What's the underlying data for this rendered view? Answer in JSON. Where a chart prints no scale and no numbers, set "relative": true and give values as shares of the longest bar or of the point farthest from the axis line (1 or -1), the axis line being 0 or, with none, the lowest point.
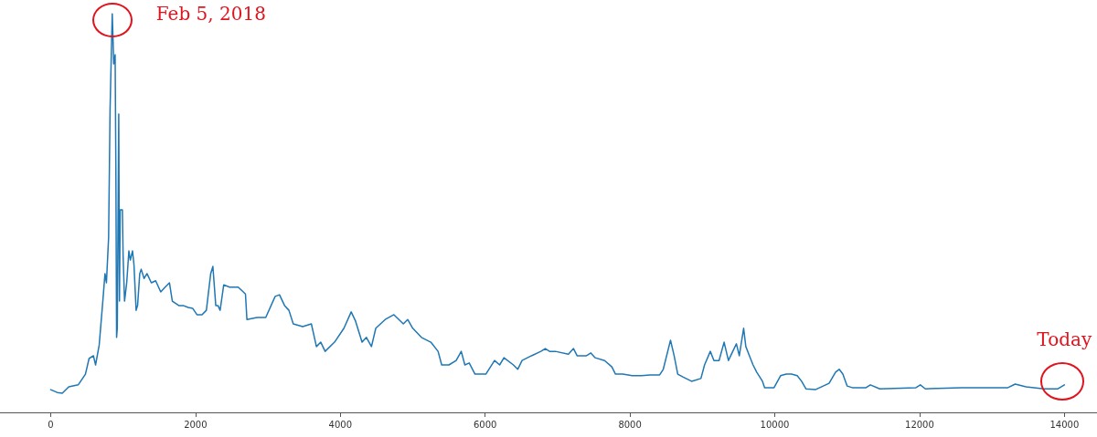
{
  "chart_data": {
    "type": "line",
    "relative": true,
    "xlim": [
      -700,
      14450
    ],
    "xticks": [
      0,
      2000,
      4000,
      6000,
      8000,
      10000,
      12000,
      14000
    ],
    "grid": false,
    "marker": "none",
    "line_style": "solid",
    "annotations": [
      {
        "text": "Feb 5, 2018",
        "x": 850,
        "y": 1
      },
      {
        "text": "Today",
        "x": 14000,
        "y": 0.069
      }
    ],
    "series": [
      {
        "color": "#1f77b4",
        "x": [
          0,
          90,
          160,
          250,
          380,
          480,
          530,
          590,
          620,
          670,
          720,
          750,
          770,
          800,
          820,
          850,
          860,
          870,
          890,
          900,
          910,
          920,
          940,
          950,
          960,
          990,
          1000,
          1020,
          1050,
          1080,
          1100,
          1130,
          1150,
          1180,
          1200,
          1230,
          1250,
          1290,
          1330,
          1390,
          1450,
          1520,
          1580,
          1640,
          1680,
          1770,
          1830,
          1900,
          1960,
          2020,
          2090,
          2150,
          2210,
          2240,
          2280,
          2310,
          2340,
          2390,
          2470,
          2590,
          2690,
          2710,
          2850,
          2970,
          3100,
          3160,
          3230,
          3290,
          3350,
          3480,
          3600,
          3670,
          3730,
          3790,
          3920,
          4050,
          4150,
          4210,
          4300,
          4360,
          4430,
          4490,
          4620,
          4740,
          4870,
          4930,
          5000,
          5120,
          5250,
          5350,
          5400,
          5500,
          5600,
          5670,
          5720,
          5780,
          5860,
          5940,
          6010,
          6130,
          6200,
          6260,
          6390,
          6450,
          6510,
          6640,
          6770,
          6830,
          6890,
          6970,
          7150,
          7220,
          7270,
          7400,
          7460,
          7520,
          7650,
          7750,
          7800,
          7900,
          8030,
          8160,
          8280,
          8410,
          8460,
          8560,
          8610,
          8660,
          8730,
          8850,
          8980,
          9030,
          9110,
          9160,
          9230,
          9300,
          9360,
          9420,
          9470,
          9510,
          9570,
          9600,
          9650,
          9700,
          9750,
          9830,
          9860,
          9990,
          10080,
          10160,
          10230,
          10310,
          10370,
          10430,
          10560,
          10750,
          10840,
          10890,
          10940,
          11000,
          11070,
          11260,
          11320,
          11450,
          11950,
          12010,
          12080,
          12580,
          13220,
          13320,
          13470,
          13720,
          13910,
          14000
        ],
        "values": [
          0.057,
          0.05,
          0.048,
          0.064,
          0.069,
          0.096,
          0.135,
          0.142,
          0.119,
          0.169,
          0.279,
          0.348,
          0.325,
          0.439,
          0.76,
          1,
          0.943,
          0.874,
          0.897,
          0.622,
          0.188,
          0.211,
          0.748,
          0.279,
          0.508,
          0.508,
          0.394,
          0.279,
          0.325,
          0.405,
          0.382,
          0.405,
          0.371,
          0.256,
          0.268,
          0.348,
          0.359,
          0.336,
          0.348,
          0.325,
          0.33,
          0.302,
          0.314,
          0.325,
          0.279,
          0.268,
          0.268,
          0.263,
          0.261,
          0.245,
          0.245,
          0.256,
          0.348,
          0.366,
          0.268,
          0.268,
          0.256,
          0.32,
          0.314,
          0.314,
          0.297,
          0.233,
          0.238,
          0.238,
          0.291,
          0.295,
          0.268,
          0.256,
          0.222,
          0.215,
          0.222,
          0.165,
          0.176,
          0.153,
          0.176,
          0.211,
          0.252,
          0.229,
          0.176,
          0.188,
          0.165,
          0.211,
          0.233,
          0.245,
          0.222,
          0.233,
          0.211,
          0.188,
          0.176,
          0.153,
          0.119,
          0.119,
          0.13,
          0.153,
          0.119,
          0.124,
          0.096,
          0.096,
          0.096,
          0.13,
          0.119,
          0.137,
          0.119,
          0.108,
          0.13,
          0.142,
          0.153,
          0.16,
          0.153,
          0.153,
          0.146,
          0.16,
          0.142,
          0.142,
          0.149,
          0.137,
          0.13,
          0.114,
          0.096,
          0.096,
          0.092,
          0.092,
          0.094,
          0.094,
          0.108,
          0.181,
          0.142,
          0.096,
          0.089,
          0.078,
          0.085,
          0.119,
          0.153,
          0.13,
          0.13,
          0.176,
          0.13,
          0.153,
          0.172,
          0.142,
          0.211,
          0.165,
          0.142,
          0.119,
          0.101,
          0.078,
          0.062,
          0.062,
          0.092,
          0.096,
          0.096,
          0.092,
          0.078,
          0.059,
          0.057,
          0.073,
          0.101,
          0.108,
          0.096,
          0.066,
          0.062,
          0.062,
          0.069,
          0.059,
          0.062,
          0.069,
          0.059,
          0.062,
          0.062,
          0.071,
          0.064,
          0.059,
          0.059,
          0.069
        ]
      }
    ]
  }
}
